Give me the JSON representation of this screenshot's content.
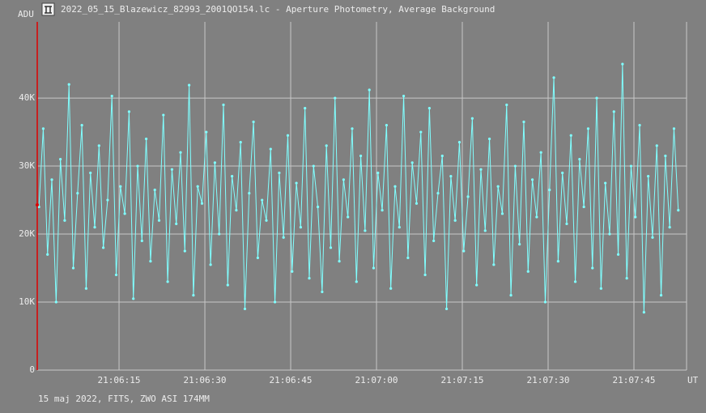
{
  "chart_data": {
    "type": "line",
    "title": "2022_05_15_Blazewicz_82993_2001QO154.lc - Aperture Photometry, Average Background",
    "ylabel": "ADU",
    "xlabel": "UT",
    "note": "15 maj 2022, FITS, ZWO ASI 174MM",
    "color": "#80ffff",
    "grid": true,
    "xlim": [
      75960.7,
      76074.2
    ],
    "ylim": [
      0,
      51200
    ],
    "xticks": [
      {
        "value": 75975,
        "label": "21:06:15"
      },
      {
        "value": 75990,
        "label": "21:06:30"
      },
      {
        "value": 76005,
        "label": "21:06:45"
      },
      {
        "value": 76020,
        "label": "21:07:00"
      },
      {
        "value": 76035,
        "label": "21:07:15"
      },
      {
        "value": 76050,
        "label": "21:07:30"
      },
      {
        "value": 76065,
        "label": "21:07:45"
      }
    ],
    "yticks": [
      0,
      {
        "value": 10000,
        "label": "10K"
      },
      {
        "value": 20000,
        "label": "20K"
      },
      {
        "value": 30000,
        "label": "30K"
      },
      {
        "value": 40000,
        "label": "40K"
      }
    ],
    "x": [
      75961,
      75961.75,
      75962.5,
      75963.25,
      75964,
      75964.75,
      75965.5,
      75966.25,
      75967,
      75967.75,
      75968.5,
      75969.25,
      75970,
      75970.75,
      75971.5,
      75972.25,
      75973,
      75973.75,
      75974.5,
      75975.25,
      75976,
      75976.75,
      75977.5,
      75978.25,
      75979,
      75979.75,
      75980.5,
      75981.25,
      75982,
      75982.75,
      75983.5,
      75984.25,
      75985,
      75985.75,
      75986.5,
      75987.25,
      75988,
      75988.75,
      75989.5,
      75990.25,
      75991,
      75991.75,
      75992.5,
      75993.25,
      75994,
      75994.75,
      75995.5,
      75996.25,
      75997,
      75997.75,
      75998.5,
      75999.25,
      76000,
      76000.75,
      76001.5,
      76002.25,
      76003,
      76003.75,
      76004.5,
      76005.25,
      76006,
      76006.75,
      76007.5,
      76008.25,
      76009,
      76009.75,
      76010.5,
      76011.25,
      76012,
      76012.75,
      76013.5,
      76014.25,
      76015,
      76015.75,
      76016.5,
      76017.25,
      76018,
      76018.75,
      76019.5,
      76020.25,
      76021,
      76021.75,
      76022.5,
      76023.25,
      76024,
      76024.75,
      76025.5,
      76026.25,
      76027,
      76027.75,
      76028.5,
      76029.25,
      76030,
      76030.75,
      76031.5,
      76032.25,
      76033,
      76033.75,
      76034.5,
      76035.25,
      76036,
      76036.75,
      76037.5,
      76038.25,
      76039,
      76039.75,
      76040.5,
      76041.25,
      76042,
      76042.75,
      76043.5,
      76044.25,
      76045,
      76045.75,
      76046.5,
      76047.25,
      76048,
      76048.75,
      76049.5,
      76050.25,
      76051,
      76051.75,
      76052.5,
      76053.25,
      76054,
      76054.75,
      76055.5,
      76056.25,
      76057,
      76057.75,
      76058.5,
      76059.25,
      76060,
      76060.75,
      76061.5,
      76062.25,
      76063,
      76063.75,
      76064.5,
      76065.25,
      76066,
      76066.75,
      76067.5,
      76068.25,
      76069,
      76069.75,
      76070.5,
      76071.25,
      76072,
      76072.75
    ],
    "values": [
      24000,
      35500,
      17000,
      28000,
      10000,
      31000,
      22000,
      42000,
      15000,
      26000,
      36000,
      12000,
      29000,
      21000,
      33000,
      18000,
      25000,
      40300,
      14000,
      27000,
      23000,
      38000,
      10500,
      30000,
      19000,
      34000,
      16000,
      26500,
      22000,
      37500,
      13000,
      29500,
      21500,
      32000,
      17500,
      41900,
      11000,
      27000,
      24500,
      35000,
      15500,
      30500,
      20000,
      39000,
      12500,
      28500,
      23500,
      33500,
      9000,
      26000,
      36500,
      16500,
      25000,
      22000,
      32500,
      10000,
      29000,
      19500,
      34500,
      14500,
      27500,
      21000,
      38500,
      13500,
      30000,
      24000,
      11500,
      33000,
      18000,
      40000,
      16000,
      28000,
      22500,
      35500,
      13000,
      31500,
      20500,
      41200,
      15000,
      29000,
      23500,
      36000,
      12000,
      27000,
      21000,
      40300,
      16500,
      30500,
      24500,
      35000,
      14000,
      38500,
      19000,
      26000,
      31500,
      9000,
      28500,
      22000,
      33500,
      17500,
      25500,
      37000,
      12500,
      29500,
      20500,
      34000,
      15500,
      27000,
      23000,
      39000,
      11000,
      30000,
      18500,
      36500,
      14500,
      28000,
      22500,
      32000,
      10000,
      26500,
      43000,
      16000,
      29000,
      21500,
      34500,
      13000,
      31000,
      24000,
      35500,
      15000,
      40000,
      12000,
      27500,
      20000,
      38000,
      17000,
      45000,
      13500,
      30000,
      22500,
      36000,
      8500,
      28500,
      19500,
      33000,
      11000,
      31500,
      21000,
      35500,
      23500
    ]
  }
}
